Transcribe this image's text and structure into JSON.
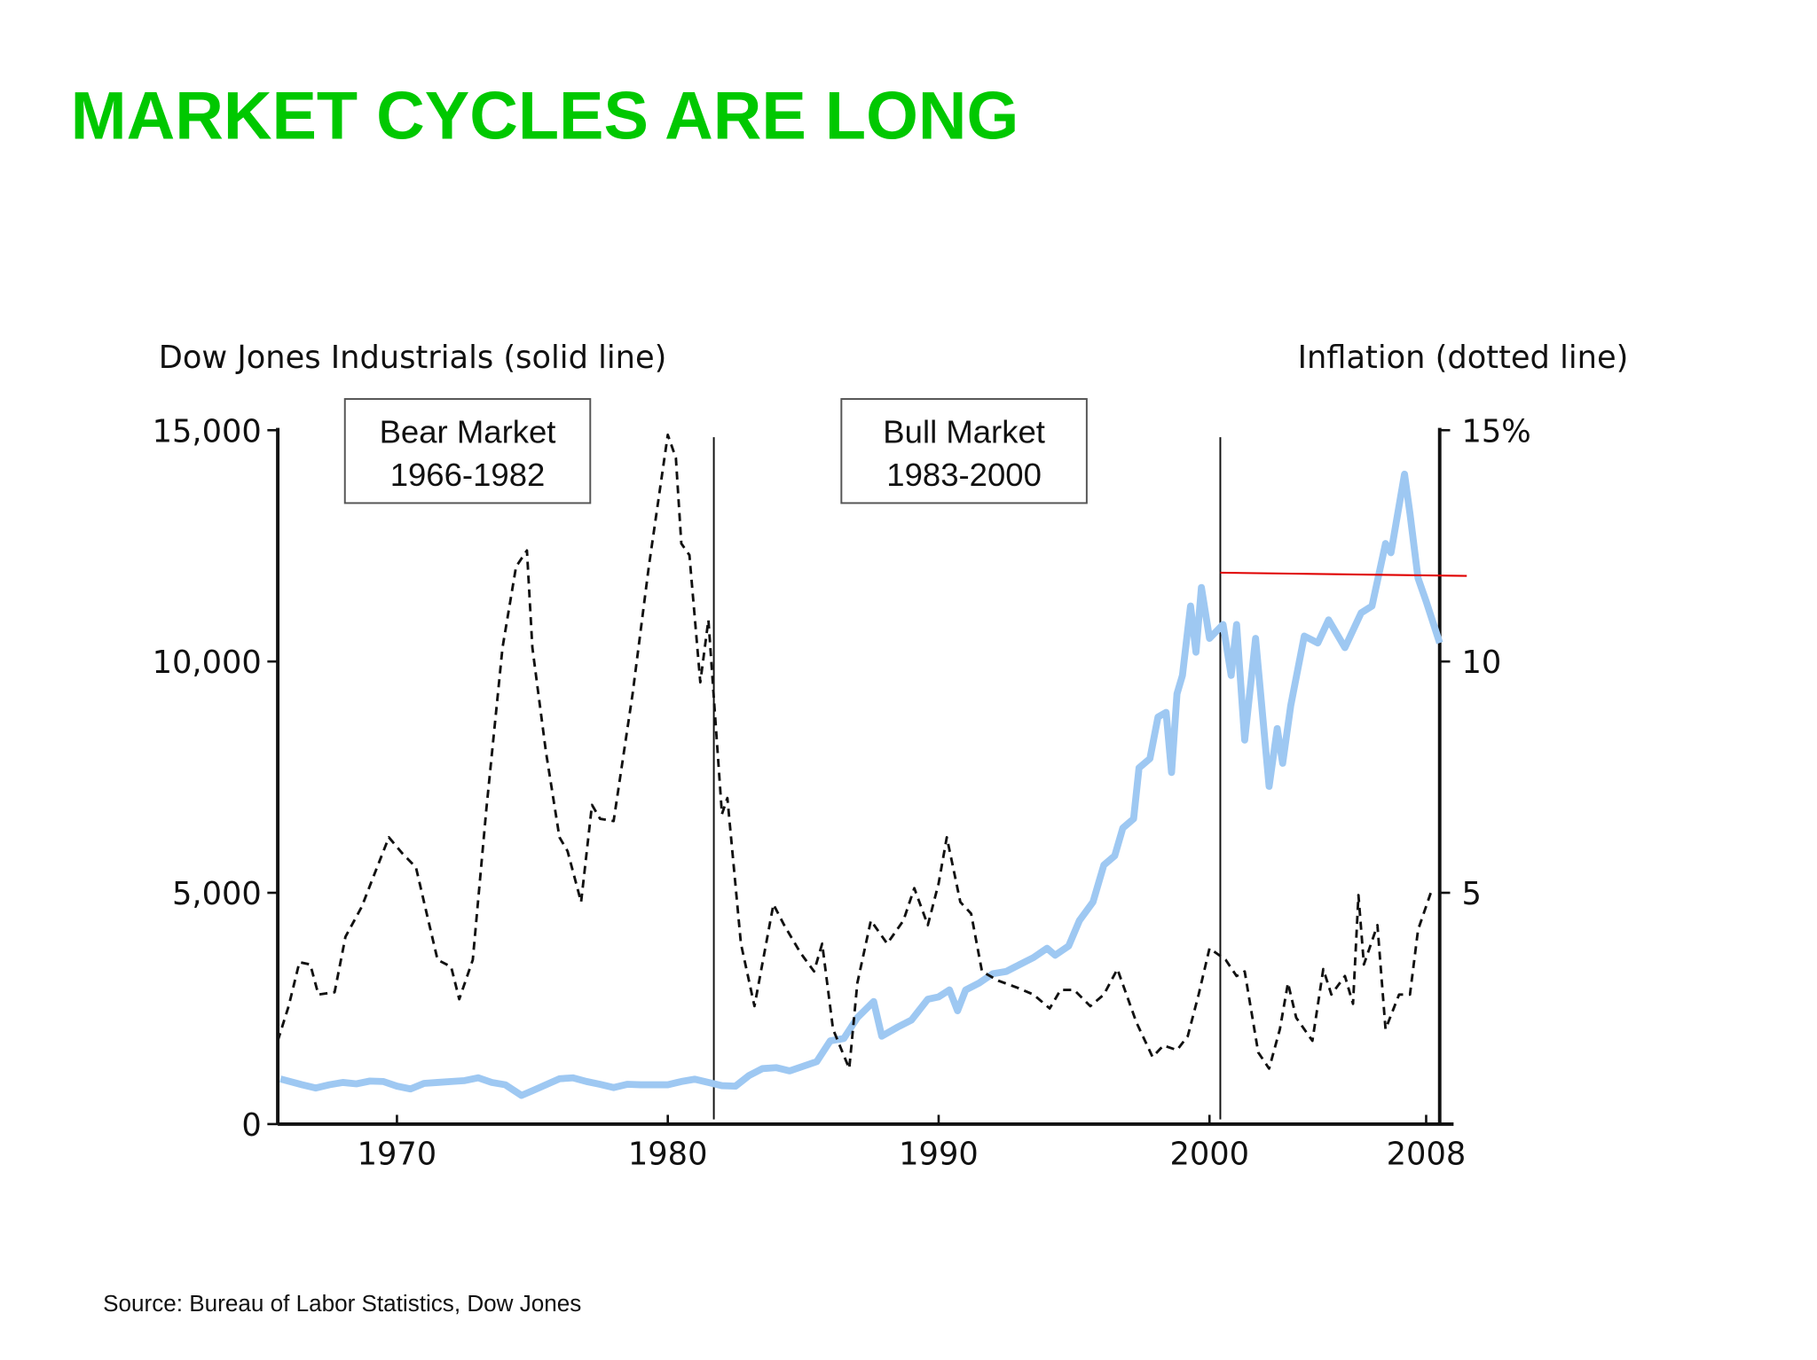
{
  "chart_data": {
    "type": "line",
    "title": "MARKET CYCLES ARE LONG",
    "y_label": "Dow Jones Industrials (solid line)",
    "y2_label": "Inflation (dotted line)",
    "source": "Source:  Bureau of Labor Statistics, Dow Jones",
    "xlim": [
      1965.6,
      2008.5
    ],
    "xticks": [
      1970,
      1980,
      1990,
      2000,
      2008
    ],
    "ylim": [
      0,
      15000
    ],
    "yticks": [
      0,
      {
        "value": 5000,
        "label": "5,000"
      },
      {
        "value": 10000,
        "label": "10,000"
      },
      {
        "value": 15000,
        "label": "15,000"
      }
    ],
    "y2lim": [
      0,
      15
    ],
    "y2ticks": [
      5,
      10,
      {
        "value": 15,
        "label": "15%"
      }
    ],
    "annotations": [
      {
        "lines": [
          "Bear Market",
          "1966-1982"
        ]
      },
      {
        "lines": [
          "Bull Market",
          "1983-2000"
        ]
      }
    ],
    "vlines": [
      1981.7,
      2000.4
    ],
    "hline": {
      "x": [
        2000.4,
        2009.5
      ],
      "values": [
        11920,
        11850
      ],
      "color": "#e00000"
    },
    "series": [
      {
        "color": "#9ec8f2",
        "dash": false,
        "x": [
          1965.7,
          1966.5,
          1967,
          1967.5,
          1968,
          1968.5,
          1969,
          1969.5,
          1970,
          1970.5,
          1971,
          1971.5,
          1972,
          1972.5,
          1973,
          1973.5,
          1974,
          1974.6,
          1975,
          1975.5,
          1976,
          1976.5,
          1977,
          1977.5,
          1978,
          1978.5,
          1979,
          1979.5,
          1980,
          1980.5,
          1981,
          1981.5,
          1982,
          1982.5,
          1983,
          1983.5,
          1984,
          1984.5,
          1985,
          1985.5,
          1986,
          1986.5,
          1987,
          1987.6,
          1987.9,
          1988.5,
          1989,
          1989.6,
          1990,
          1990.4,
          1990.7,
          1991,
          1991.5,
          1992,
          1992.5,
          1993,
          1993.5,
          1994,
          1994.3,
          1994.8,
          1995.2,
          1995.7,
          1996.1,
          1996.5,
          1996.8,
          1997.2,
          1997.4,
          1997.8,
          1998.1,
          1998.4,
          1998.6,
          1998.8,
          1999.0,
          1999.3,
          1999.5,
          1999.7,
          2000.0,
          2000.5,
          2000.8,
          2001.0,
          2001.3,
          2001.7,
          2002.2,
          2002.5,
          2002.7,
          2003.0,
          2003.5,
          2004.0,
          2004.4,
          2005.0,
          2005.6,
          2006.0,
          2006.5,
          2006.7,
          2007.2,
          2007.4,
          2007.7,
          2008.0,
          2008.5
        ],
        "values": [
          975,
          850,
          780,
          850,
          900,
          870,
          930,
          920,
          820,
          760,
          880,
          900,
          920,
          940,
          1000,
          900,
          850,
          620,
          720,
          850,
          980,
          1000,
          920,
          860,
          790,
          860,
          850,
          850,
          850,
          920,
          970,
          900,
          830,
          820,
          1050,
          1200,
          1220,
          1150,
          1250,
          1350,
          1800,
          1850,
          2300,
          2650,
          1900,
          2100,
          2250,
          2700,
          2750,
          2900,
          2450,
          2900,
          3050,
          3250,
          3300,
          3450,
          3600,
          3800,
          3650,
          3850,
          4400,
          4800,
          5600,
          5800,
          6400,
          6600,
          7700,
          7900,
          8800,
          8900,
          7600,
          9300,
          9700,
          11200,
          10200,
          11600,
          10500,
          10800,
          9700,
          10800,
          8300,
          10500,
          7300,
          8550,
          7800,
          9050,
          10550,
          10400,
          10900,
          10300,
          11050,
          11200,
          12550,
          12350,
          14050,
          13200,
          11800,
          11300,
          10400
        ]
      },
      {
        "color": "#111111",
        "dash": true,
        "x": [
          1965.6,
          1966.0,
          1966.4,
          1966.8,
          1967.1,
          1967.7,
          1968.1,
          1968.7,
          1969.1,
          1969.7,
          1970.2,
          1970.7,
          1971.1,
          1971.5,
          1972.0,
          1972.3,
          1972.8,
          1973.3,
          1973.9,
          1974.4,
          1974.8,
          1975.0,
          1975.5,
          1976.0,
          1976.3,
          1976.8,
          1977.2,
          1977.5,
          1978.0,
          1978.7,
          1979.3,
          1980.0,
          1980.3,
          1980.5,
          1980.8,
          1981.2,
          1981.5,
          1982.0,
          1982.2,
          1982.7,
          1983.2,
          1983.9,
          1984.3,
          1984.9,
          1985.4,
          1985.7,
          1986.1,
          1986.7,
          1987.0,
          1987.5,
          1988.1,
          1988.7,
          1989.1,
          1989.6,
          1990.0,
          1990.3,
          1990.8,
          1991.2,
          1991.6,
          1992.2,
          1992.9,
          1993.5,
          1994.1,
          1994.5,
          1995.0,
          1995.6,
          1996.1,
          1996.6,
          1997.3,
          1997.9,
          1998.3,
          1998.8,
          1999.2,
          1999.6,
          2000.0,
          2000.6,
          2001.0,
          2001.3,
          2001.8,
          2002.2,
          2002.6,
          2002.9,
          2003.2,
          2003.8,
          2004.2,
          2004.5,
          2005.0,
          2005.3,
          2005.5,
          2005.7,
          2006.2,
          2006.5,
          2007.0,
          2007.4,
          2007.7,
          2008.2
        ],
        "values": [
          1.8,
          2.55,
          3.5,
          3.45,
          2.8,
          2.85,
          4.05,
          4.7,
          5.3,
          6.2,
          5.85,
          5.55,
          4.55,
          3.55,
          3.4,
          2.7,
          3.55,
          6.8,
          10.3,
          12.05,
          12.4,
          10.3,
          8.05,
          6.2,
          5.9,
          4.8,
          6.9,
          6.6,
          6.55,
          9.3,
          12.05,
          14.9,
          14.4,
          12.55,
          12.3,
          9.55,
          10.9,
          6.7,
          7.05,
          3.9,
          2.55,
          4.75,
          4.3,
          3.7,
          3.3,
          3.9,
          2.05,
          1.2,
          3.05,
          4.4,
          3.9,
          4.4,
          5.1,
          4.3,
          5.2,
          6.2,
          4.8,
          4.55,
          3.3,
          3.1,
          2.95,
          2.8,
          2.5,
          2.9,
          2.9,
          2.55,
          2.8,
          3.35,
          2.2,
          1.45,
          1.7,
          1.6,
          1.9,
          2.8,
          3.8,
          3.55,
          3.2,
          3.3,
          1.55,
          1.2,
          2.05,
          3.05,
          2.3,
          1.8,
          3.35,
          2.8,
          3.2,
          2.6,
          4.95,
          3.45,
          4.3,
          2.05,
          2.8,
          2.8,
          4.2,
          5.05
        ],
        "axis": "y2"
      }
    ]
  }
}
